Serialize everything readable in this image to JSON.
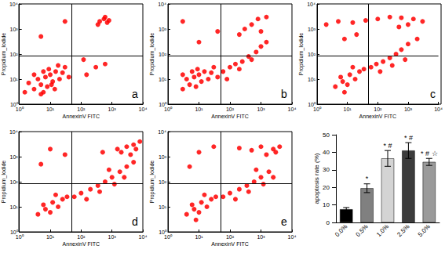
{
  "chart_data": [
    {
      "type": "scatter",
      "label": "a",
      "xlabel": "AnnexinV FITC",
      "ylabel": "Propidium_Iodide",
      "log": true,
      "grid": false,
      "color": "#ff0000",
      "xlim": [
        1,
        10000
      ],
      "ylim": [
        1,
        10000
      ],
      "xticks": [
        {
          "value": 1,
          "label": "10⁰"
        },
        {
          "value": 10,
          "label": "10¹"
        },
        {
          "value": 100,
          "label": "10²"
        },
        {
          "value": 1000,
          "label": "10³"
        },
        {
          "value": 10000,
          "label": "10⁴"
        }
      ],
      "yticks": [
        {
          "value": 1,
          "label": "10⁰"
        },
        {
          "value": 10,
          "label": "10¹"
        },
        {
          "value": 100,
          "label": "10²"
        },
        {
          "value": 1000,
          "label": "10³"
        },
        {
          "value": 10000,
          "label": "10⁴"
        }
      ],
      "quadrant": {
        "x": 50,
        "y": 85
      },
      "points": [
        [
          3,
          4
        ],
        [
          5,
          6
        ],
        [
          8,
          5
        ],
        [
          4,
          10
        ],
        [
          7,
          12
        ],
        [
          12,
          8
        ],
        [
          10,
          15
        ],
        [
          15,
          20
        ],
        [
          6,
          3
        ],
        [
          20,
          10
        ],
        [
          2,
          7
        ],
        [
          9,
          25
        ],
        [
          25,
          18
        ],
        [
          14,
          4
        ],
        [
          30,
          30
        ],
        [
          3,
          15
        ],
        [
          18,
          35
        ],
        [
          40,
          12
        ],
        [
          1.5,
          3
        ],
        [
          6,
          20
        ],
        [
          11,
          6
        ],
        [
          5,
          2.5
        ],
        [
          400,
          2000
        ],
        [
          550,
          2500
        ],
        [
          700,
          1800
        ],
        [
          350,
          1500
        ],
        [
          600,
          3000
        ],
        [
          800,
          2200
        ],
        [
          150,
          15
        ],
        [
          300,
          30
        ],
        [
          120,
          60
        ],
        [
          600,
          40
        ],
        [
          5,
          500
        ],
        [
          30,
          2000
        ]
      ]
    },
    {
      "type": "scatter",
      "label": "b",
      "xlabel": "AnnexinV FITC",
      "ylabel": "Propidium_Iodide",
      "log": true,
      "grid": false,
      "color": "#ff0000",
      "xlim": [
        1,
        10000
      ],
      "ylim": [
        1,
        10000
      ],
      "xticks": [
        {
          "value": 1,
          "label": "10⁰"
        },
        {
          "value": 10,
          "label": "10¹"
        },
        {
          "value": 100,
          "label": "10²"
        },
        {
          "value": 1000,
          "label": "10³"
        },
        {
          "value": 10000,
          "label": "10⁴"
        }
      ],
      "yticks": [
        {
          "value": 1,
          "label": "10⁰"
        },
        {
          "value": 10,
          "label": "10¹"
        },
        {
          "value": 100,
          "label": "10²"
        },
        {
          "value": 1000,
          "label": "10³"
        },
        {
          "value": 10000,
          "label": "10⁴"
        }
      ],
      "quadrant": {
        "x": 50,
        "y": 85
      },
      "points": [
        [
          3,
          4
        ],
        [
          5,
          6
        ],
        [
          8,
          5
        ],
        [
          4,
          10
        ],
        [
          7,
          12
        ],
        [
          12,
          8
        ],
        [
          10,
          15
        ],
        [
          15,
          20
        ],
        [
          20,
          10
        ],
        [
          9,
          25
        ],
        [
          25,
          18
        ],
        [
          30,
          30
        ],
        [
          3,
          15
        ],
        [
          40,
          12
        ],
        [
          6,
          20
        ],
        [
          60,
          20
        ],
        [
          100,
          30
        ],
        [
          150,
          40
        ],
        [
          250,
          50
        ],
        [
          400,
          80
        ],
        [
          700,
          120
        ],
        [
          1000,
          200
        ],
        [
          200,
          25
        ],
        [
          80,
          10
        ],
        [
          500,
          60
        ],
        [
          1500,
          300
        ],
        [
          300,
          1000
        ],
        [
          500,
          1500
        ],
        [
          800,
          2500
        ],
        [
          1500,
          3000
        ],
        [
          200,
          600
        ],
        [
          1000,
          800
        ],
        [
          10,
          300
        ],
        [
          3,
          2000
        ],
        [
          40,
          800
        ]
      ]
    },
    {
      "type": "scatter",
      "label": "c",
      "xlabel": "AnnexinV FITC",
      "ylabel": "Propidium_Iodide",
      "log": true,
      "grid": false,
      "color": "#ff0000",
      "xlim": [
        1,
        10000
      ],
      "ylim": [
        1,
        10000
      ],
      "xticks": [
        {
          "value": 1,
          "label": "10⁰"
        },
        {
          "value": 10,
          "label": "10¹"
        },
        {
          "value": 100,
          "label": "10²"
        },
        {
          "value": 1000,
          "label": "10³"
        },
        {
          "value": 10000,
          "label": "10⁴"
        }
      ],
      "yticks": [
        {
          "value": 1,
          "label": "10⁰"
        },
        {
          "value": 10,
          "label": "10¹"
        },
        {
          "value": 100,
          "label": "10²"
        },
        {
          "value": 1000,
          "label": "10³"
        },
        {
          "value": 10000,
          "label": "10⁴"
        }
      ],
      "quadrant": {
        "x": 50,
        "y": 85
      },
      "points": [
        [
          4,
          5
        ],
        [
          7,
          8
        ],
        [
          10,
          6
        ],
        [
          6,
          12
        ],
        [
          12,
          15
        ],
        [
          18,
          10
        ],
        [
          25,
          20
        ],
        [
          15,
          30
        ],
        [
          35,
          25
        ],
        [
          8,
          3
        ],
        [
          60,
          30
        ],
        [
          90,
          40
        ],
        [
          150,
          50
        ],
        [
          250,
          70
        ],
        [
          400,
          100
        ],
        [
          600,
          150
        ],
        [
          1000,
          250
        ],
        [
          120,
          20
        ],
        [
          300,
          35
        ],
        [
          800,
          60
        ],
        [
          2000,
          400
        ],
        [
          2,
          1500
        ],
        [
          5,
          2000
        ],
        [
          15,
          1800
        ],
        [
          40,
          2200
        ],
        [
          100,
          2500
        ],
        [
          250,
          3000
        ],
        [
          600,
          2800
        ],
        [
          1500,
          2500
        ],
        [
          3000,
          2000
        ],
        [
          500,
          1200
        ],
        [
          1000,
          1500
        ],
        [
          20,
          600
        ],
        [
          8,
          400
        ]
      ]
    },
    {
      "type": "scatter",
      "label": "d",
      "xlabel": "AnnexinV FITC",
      "ylabel": "Propidium_Iodide",
      "log": true,
      "grid": false,
      "color": "#ff0000",
      "xlim": [
        1,
        10000
      ],
      "ylim": [
        1,
        10000
      ],
      "xticks": [
        {
          "value": 1,
          "label": "10⁰"
        },
        {
          "value": 10,
          "label": "10¹"
        },
        {
          "value": 100,
          "label": "10²"
        },
        {
          "value": 1000,
          "label": "10³"
        },
        {
          "value": 10000,
          "label": "10⁴"
        }
      ],
      "yticks": [
        {
          "value": 1,
          "label": "10⁰"
        },
        {
          "value": 10,
          "label": "10¹"
        },
        {
          "value": 100,
          "label": "10²"
        },
        {
          "value": 1000,
          "label": "10³"
        },
        {
          "value": 10000,
          "label": "10⁴"
        }
      ],
      "quadrant": {
        "x": 50,
        "y": 85
      },
      "points": [
        [
          4,
          5
        ],
        [
          7,
          8
        ],
        [
          10,
          6
        ],
        [
          6,
          12
        ],
        [
          12,
          15
        ],
        [
          18,
          10
        ],
        [
          25,
          20
        ],
        [
          15,
          30
        ],
        [
          35,
          25
        ],
        [
          60,
          25
        ],
        [
          100,
          35
        ],
        [
          200,
          50
        ],
        [
          350,
          70
        ],
        [
          600,
          100
        ],
        [
          1000,
          150
        ],
        [
          1800,
          250
        ],
        [
          3000,
          400
        ],
        [
          150,
          20
        ],
        [
          400,
          40
        ],
        [
          1200,
          80
        ],
        [
          2500,
          150
        ],
        [
          5000,
          600
        ],
        [
          800,
          300
        ],
        [
          2000,
          1500
        ],
        [
          3000,
          2500
        ],
        [
          5000,
          3000
        ],
        [
          8000,
          4000
        ],
        [
          4000,
          1200
        ],
        [
          1500,
          2000
        ],
        [
          6000,
          2000
        ],
        [
          500,
          1500
        ],
        [
          10,
          2000
        ],
        [
          30,
          1200
        ],
        [
          5,
          500
        ]
      ]
    },
    {
      "type": "scatter",
      "label": "e",
      "xlabel": "AnnexinV FITC",
      "ylabel": "Propidium_Iodide",
      "log": true,
      "grid": false,
      "color": "#ff0000",
      "xlim": [
        1,
        10000
      ],
      "ylim": [
        1,
        10000
      ],
      "xticks": [
        {
          "value": 1,
          "label": "10⁰"
        },
        {
          "value": 10,
          "label": "10¹"
        },
        {
          "value": 100,
          "label": "10²"
        },
        {
          "value": 1000,
          "label": "10³"
        },
        {
          "value": 10000,
          "label": "10⁴"
        }
      ],
      "yticks": [
        {
          "value": 1,
          "label": "10⁰"
        },
        {
          "value": 10,
          "label": "10¹"
        },
        {
          "value": 100,
          "label": "10²"
        },
        {
          "value": 1000,
          "label": "10³"
        },
        {
          "value": 10000,
          "label": "10⁴"
        }
      ],
      "quadrant": {
        "x": 50,
        "y": 85
      },
      "points": [
        [
          4,
          5
        ],
        [
          7,
          8
        ],
        [
          10,
          6
        ],
        [
          6,
          12
        ],
        [
          12,
          15
        ],
        [
          18,
          10
        ],
        [
          25,
          20
        ],
        [
          15,
          30
        ],
        [
          35,
          25
        ],
        [
          8,
          3
        ],
        [
          60,
          25
        ],
        [
          100,
          35
        ],
        [
          200,
          50
        ],
        [
          350,
          70
        ],
        [
          600,
          100
        ],
        [
          1000,
          150
        ],
        [
          1800,
          250
        ],
        [
          150,
          20
        ],
        [
          400,
          40
        ],
        [
          1200,
          80
        ],
        [
          2500,
          150
        ],
        [
          700,
          300
        ],
        [
          1500,
          1200
        ],
        [
          2500,
          2000
        ],
        [
          4000,
          2500
        ],
        [
          1000,
          2500
        ],
        [
          3000,
          1500
        ],
        [
          500,
          1800
        ],
        [
          200,
          2200
        ],
        [
          10,
          1500
        ],
        [
          30,
          2500
        ],
        [
          5,
          400
        ]
      ]
    },
    {
      "type": "bar",
      "ylabel": "apoptosis rate (%)",
      "grid": false,
      "categories": [
        "0.0%",
        "0.5%",
        "1.0%",
        "2.5%",
        "5.0%"
      ],
      "values": [
        7.5,
        19.5,
        36.5,
        41,
        34.5
      ],
      "errors": [
        1,
        2.5,
        4.5,
        4.5,
        2
      ],
      "annotations": [
        null,
        "*",
        "* #",
        "* #",
        "* # ☆"
      ],
      "colors": [
        "#000000",
        "#808080",
        "#d4d4d4",
        "#3c3c3c",
        "#9a9a9a"
      ],
      "ylim": [
        0,
        50
      ],
      "yticks": [
        0,
        10,
        20,
        30,
        40,
        50
      ]
    }
  ]
}
